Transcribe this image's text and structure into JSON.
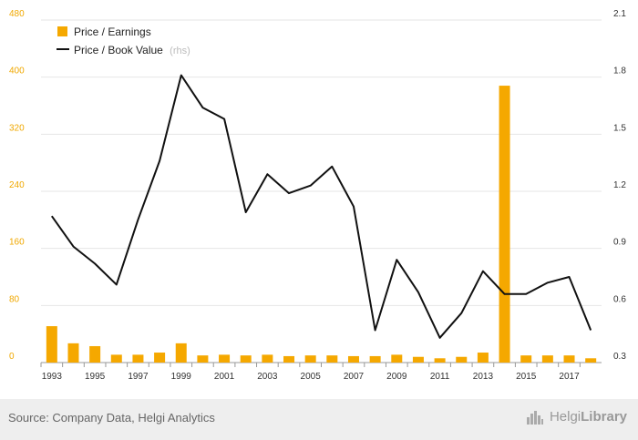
{
  "chart_data": {
    "type": "bar+line",
    "categories": [
      "1993",
      "1994",
      "1995",
      "1996",
      "1997",
      "1998",
      "1999",
      "2000",
      "2001",
      "2002",
      "2003",
      "2004",
      "2005",
      "2006",
      "2007",
      "2008",
      "2009",
      "2010",
      "2011",
      "2012",
      "2013",
      "2014",
      "2015",
      "2016",
      "2017",
      "2018"
    ],
    "x_tick_labels": [
      "1993",
      "1995",
      "1997",
      "1999",
      "2001",
      "2003",
      "2005",
      "2007",
      "2009",
      "2011",
      "2013",
      "2015",
      "2017"
    ],
    "series": [
      {
        "name": "Price / Earnings",
        "type": "bar",
        "axis": "left",
        "color": "#f5a800",
        "values": [
          51,
          27,
          23,
          11,
          11,
          14,
          27,
          10,
          11,
          10,
          11,
          9,
          10,
          10,
          9,
          9,
          11,
          8,
          6,
          8,
          14,
          388,
          10,
          10,
          10,
          6
        ]
      },
      {
        "name": "Price / Book Value",
        "type": "line",
        "axis": "right",
        "color": "#111111",
        "values": [
          1.07,
          0.91,
          0.82,
          0.71,
          1.05,
          1.36,
          1.81,
          1.64,
          1.58,
          1.09,
          1.29,
          1.19,
          1.23,
          1.33,
          1.12,
          0.47,
          0.84,
          0.67,
          0.43,
          0.56,
          0.78,
          0.66,
          0.66,
          0.72,
          0.75,
          0.47
        ]
      }
    ],
    "y_left": {
      "min": 0,
      "max": 480,
      "ticks": [
        "0",
        "80",
        "160",
        "240",
        "320",
        "400",
        "480"
      ]
    },
    "y_right": {
      "min": 0.3,
      "max": 2.1,
      "ticks": [
        "0.3",
        "0.6",
        "0.9",
        "1.2",
        "1.5",
        "1.8",
        "2.1"
      ]
    },
    "legend": {
      "position": "top-left",
      "pe_label": "Price / Earnings",
      "pbv_label": "Price / Book Value",
      "rhs_note": "(rhs)"
    }
  },
  "footer": {
    "source": "Source: Company Data, Helgi Analytics",
    "brand_light": "Helgi",
    "brand_bold": "Library"
  }
}
